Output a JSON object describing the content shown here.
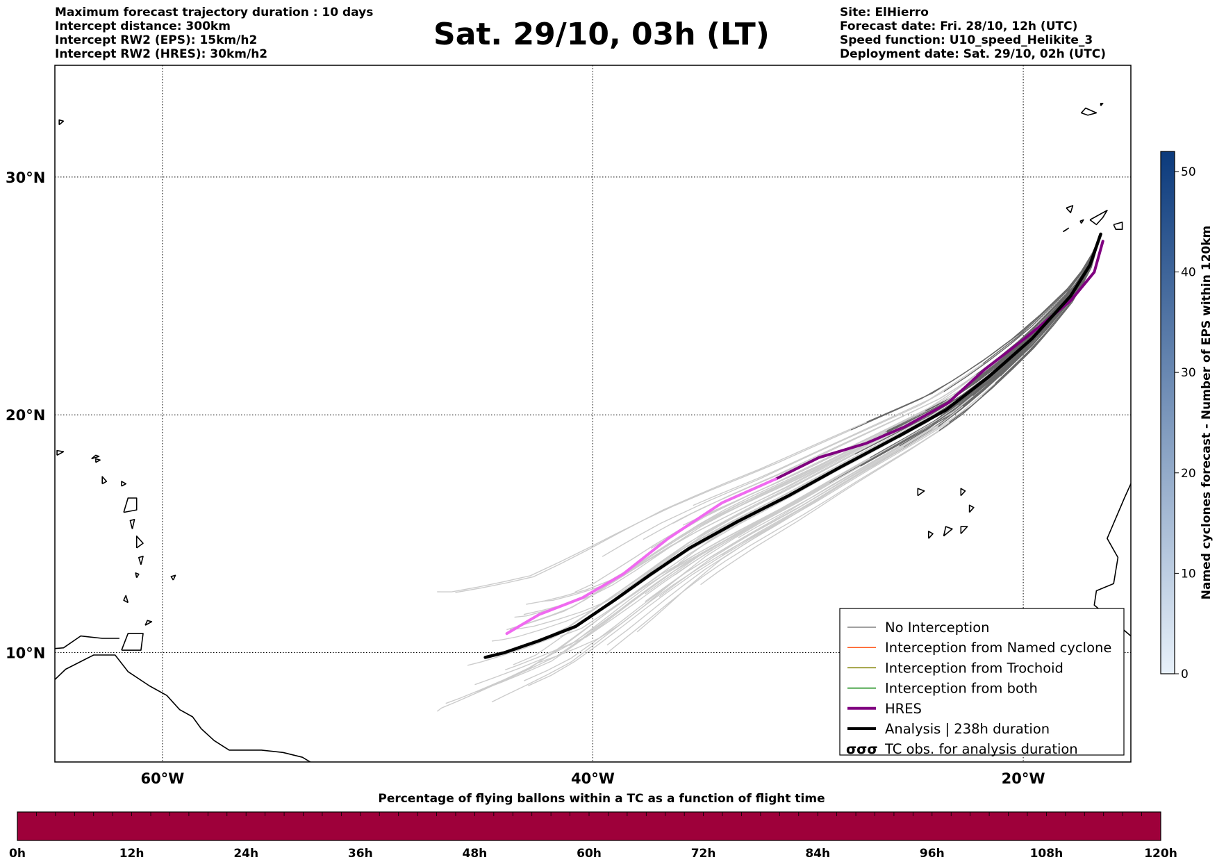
{
  "header": {
    "title": "Sat. 29/10, 03h (LT)",
    "left_lines": [
      "Maximum forecast trajectory duration : 10 days",
      "Intercept distance: 300km",
      "Intercept RW2 (EPS):  15km/h2",
      "Intercept RW2 (HRES): 30km/h2"
    ],
    "right_lines": [
      "Site: ElHierro",
      "Forecast date: Fri. 28/10, 12h (UTC)",
      "Speed function: U10_speed_Helikite_3",
      "Deployment date: Sat. 29/10, 02h (UTC)"
    ]
  },
  "map": {
    "lon_labels": [
      "60°W",
      "40°W",
      "20°W"
    ],
    "lat_labels": [
      "30°N",
      "20°N",
      "10°N"
    ],
    "lon_gridlines": [
      -60,
      -40,
      -20
    ],
    "lat_gridlines": [
      30,
      20,
      10
    ],
    "extent_lon": [
      -65,
      -15
    ],
    "extent_lat": [
      5.4,
      34.7
    ],
    "colors": {
      "eps_far": "#cccccc",
      "eps_near": "#686868",
      "hres_far": "#f06af0",
      "hres_near": "#800080",
      "analysis": "#000000",
      "coast": "#000000"
    },
    "hres_track": [
      [
        -16.3,
        27.3
      ],
      [
        -16.7,
        26.0
      ],
      [
        -17.8,
        24.8
      ],
      [
        -19.8,
        23.3
      ],
      [
        -21.8,
        21.9
      ],
      [
        -23.5,
        20.5
      ],
      [
        -25.5,
        19.5
      ],
      [
        -27.3,
        18.8
      ],
      [
        -29.5,
        18.2
      ],
      [
        -31.5,
        17.3
      ],
      [
        -34.0,
        16.3
      ],
      [
        -36.5,
        14.8
      ],
      [
        -38.6,
        13.3
      ],
      [
        -40.5,
        12.3
      ],
      [
        -42.5,
        11.6
      ],
      [
        -44.0,
        10.8
      ]
    ],
    "analysis_track": [
      [
        -16.4,
        27.6
      ],
      [
        -16.9,
        26.3
      ],
      [
        -17.8,
        25.0
      ],
      [
        -19.6,
        23.2
      ],
      [
        -21.6,
        21.6
      ],
      [
        -23.6,
        20.2
      ],
      [
        -25.8,
        19.1
      ],
      [
        -28.5,
        17.8
      ],
      [
        -30.9,
        16.6
      ],
      [
        -33.3,
        15.5
      ],
      [
        -35.5,
        14.4
      ],
      [
        -37.3,
        13.3
      ],
      [
        -39.0,
        12.2
      ],
      [
        -40.8,
        11.1
      ],
      [
        -42.5,
        10.5
      ],
      [
        -44.1,
        10.0
      ],
      [
        -45.0,
        9.8
      ]
    ]
  },
  "legend": {
    "items": [
      {
        "label": "No Interception",
        "color": "#808080",
        "width": 1.5
      },
      {
        "label": "Interception from Named cyclone",
        "color": "#ff5a1e",
        "width": 1.5
      },
      {
        "label": "Interception from Trochoid",
        "color": "#808000",
        "width": 1.5
      },
      {
        "label": "Interception from both",
        "color": "#008000",
        "width": 1.5
      },
      {
        "label": "HRES",
        "color": "#800080",
        "width": 4
      },
      {
        "label": "Analysis | 238h duration",
        "color": "#000000",
        "width": 4
      }
    ],
    "tc_obs_label": "TC obs. for analysis duration",
    "tc_symbol": "σσσ"
  },
  "colorbar_right": {
    "label": "Named cyclones forecast - Number of EPS within 120km",
    "ticks": [
      "0",
      "10",
      "20",
      "30",
      "40",
      "50"
    ],
    "max": 52,
    "color_low": "#e8f1fa",
    "color_high": "#0b3a7c"
  },
  "bottom_bar": {
    "title": "Percentage of flying ballons within a TC as a function of flight time",
    "ticks": [
      "0h",
      "12h",
      "24h",
      "36h",
      "48h",
      "60h",
      "72h",
      "84h",
      "96h",
      "108h",
      "120h"
    ],
    "fill_color": "#9e003a"
  }
}
